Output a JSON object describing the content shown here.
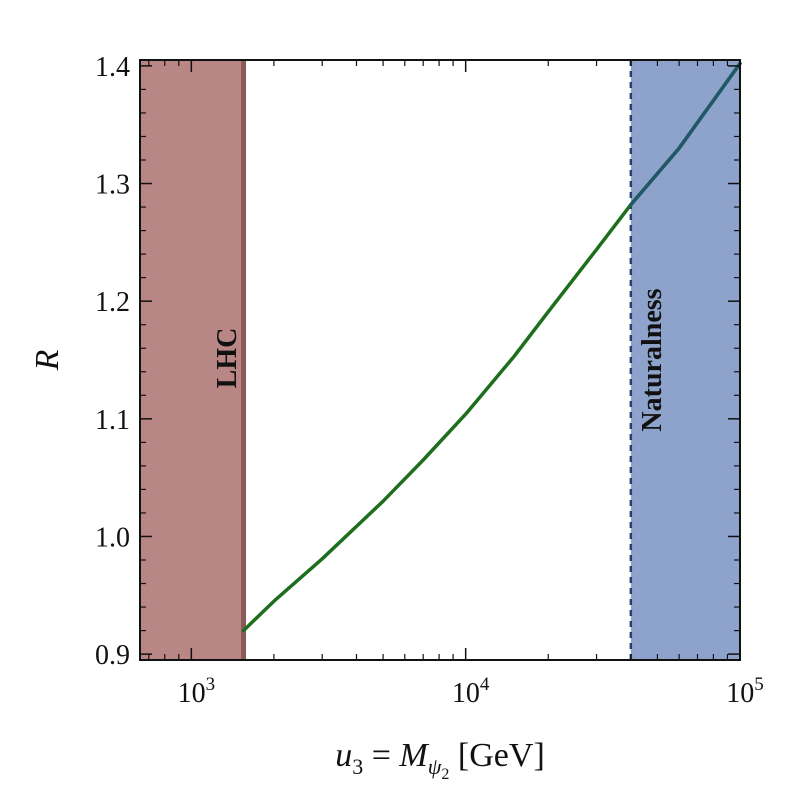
{
  "chart_data": {
    "type": "line",
    "xscale": "log",
    "xlim": [
      650,
      100000
    ],
    "ylim": [
      0.895,
      1.405
    ],
    "x_ticks": [
      {
        "value": 1000,
        "base": "10",
        "exp": "3"
      },
      {
        "value": 10000,
        "base": "10",
        "exp": "4"
      },
      {
        "value": 100000,
        "base": "10",
        "exp": "5"
      }
    ],
    "y_ticks": [
      {
        "value": 0.9,
        "label": "0.9"
      },
      {
        "value": 1.0,
        "label": "1.0"
      },
      {
        "value": 1.1,
        "label": "1.1"
      },
      {
        "value": 1.2,
        "label": "1.2"
      },
      {
        "value": 1.3,
        "label": "1.3"
      },
      {
        "value": 1.4,
        "label": "1.4"
      }
    ],
    "xlabel": {
      "u": "u",
      "u_sub": "3",
      "eq": " = ",
      "m": "M",
      "m_sub": "ψ",
      "m_subsub": "2",
      "unit": "[GeV]"
    },
    "ylabel": "R",
    "series": [
      {
        "color": "#1e6e1e",
        "x": [
          1550,
          2000,
          3000,
          5000,
          7000,
          10000,
          15000,
          20000,
          30000,
          40000,
          60000,
          100000
        ],
        "y": [
          0.92,
          0.945,
          0.981,
          1.03,
          1.065,
          1.104,
          1.153,
          1.191,
          1.244,
          1.282,
          1.33,
          1.402
        ]
      }
    ],
    "regions": [
      {
        "label": "LHC",
        "x_from": 650,
        "x_to": 1550,
        "fill": "#b98686",
        "edge": "#8a5a5a",
        "edge_style": "solid"
      },
      {
        "label": "Naturalness",
        "x_from": 40000,
        "x_to": 100000,
        "fill": "#8ea3cc",
        "edge": "#2c3e70",
        "edge_style": "dashed"
      }
    ],
    "overlay_color": "#20586a",
    "grid": false
  }
}
